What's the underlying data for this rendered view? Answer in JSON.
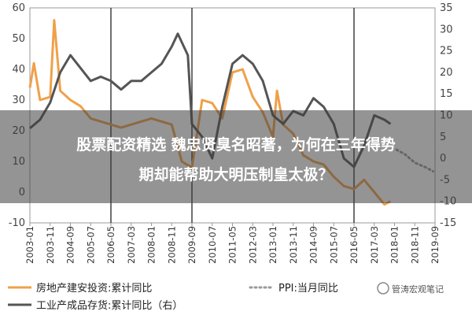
{
  "chart_data": {
    "type": "line",
    "title": "",
    "x_labels": [
      "2003-01",
      "2003-11",
      "2004-09",
      "2005-07",
      "2006-05",
      "2007-03",
      "2008-01",
      "2008-11",
      "2009-09",
      "2010-07",
      "2011-05",
      "2012-03",
      "2013-01",
      "2013-11",
      "2014-09",
      "2015-07",
      "2016-05",
      "2017-03",
      "2018-01",
      "2018-11",
      "2019-09"
    ],
    "left_axis": {
      "min": -10,
      "max": 60,
      "ticks": [
        -10,
        0,
        10,
        20,
        30,
        40,
        50,
        60
      ]
    },
    "right_axis": {
      "min": -15,
      "max": 35,
      "ticks": [
        -15,
        -10,
        -5,
        0,
        5,
        10,
        15,
        20,
        25,
        30,
        35
      ]
    },
    "vertical_lines_at": [
      "2006-05",
      "2009-09",
      "2016-05"
    ],
    "series": [
      {
        "name": "房地产建安投资:累计同比",
        "color": "#f0a04b",
        "axis": "left",
        "points": [
          [
            0,
            34
          ],
          [
            0.2,
            42
          ],
          [
            0.5,
            30
          ],
          [
            1,
            31
          ],
          [
            1.2,
            56
          ],
          [
            1.5,
            33
          ],
          [
            2,
            30
          ],
          [
            2.5,
            28
          ],
          [
            3,
            24
          ],
          [
            3.5,
            23
          ],
          [
            4,
            22
          ],
          [
            4.5,
            21
          ],
          [
            5,
            22
          ],
          [
            5.5,
            23
          ],
          [
            6,
            24
          ],
          [
            6.5,
            23
          ],
          [
            7,
            22
          ],
          [
            7.5,
            10
          ],
          [
            8,
            8
          ],
          [
            8.5,
            30
          ],
          [
            9,
            29
          ],
          [
            9.5,
            24
          ],
          [
            10,
            39
          ],
          [
            10.5,
            40
          ],
          [
            11,
            31
          ],
          [
            11.5,
            26
          ],
          [
            12,
            18
          ],
          [
            12.2,
            33
          ],
          [
            12.5,
            22
          ],
          [
            13,
            19
          ],
          [
            13.5,
            12
          ],
          [
            14,
            10
          ],
          [
            14.5,
            9
          ],
          [
            15,
            5
          ],
          [
            15.5,
            2
          ],
          [
            16,
            1
          ],
          [
            16.5,
            4
          ],
          [
            17,
            0
          ],
          [
            17.5,
            -4
          ],
          [
            17.8,
            -3
          ]
        ]
      },
      {
        "name": "PPI:当月同比",
        "color": "#9a9a9a",
        "axis": "right",
        "style": "dotted",
        "points": [
          [
            18.1,
            2
          ],
          [
            18.5,
            1
          ],
          [
            19,
            -1
          ],
          [
            19.5,
            -2
          ],
          [
            19.9,
            -3
          ]
        ]
      },
      {
        "name": "工业产成品存货:累计同比（右）",
        "color": "#555555",
        "axis": "right",
        "points": [
          [
            0,
            7
          ],
          [
            0.5,
            9
          ],
          [
            1,
            13
          ],
          [
            1.5,
            20
          ],
          [
            2,
            24
          ],
          [
            2.5,
            21
          ],
          [
            3,
            18
          ],
          [
            3.5,
            19
          ],
          [
            4,
            18
          ],
          [
            4.5,
            16
          ],
          [
            5,
            18
          ],
          [
            5.5,
            18
          ],
          [
            6,
            20
          ],
          [
            6.5,
            22
          ],
          [
            7,
            26
          ],
          [
            7.3,
            29
          ],
          [
            7.8,
            24
          ],
          [
            8,
            8
          ],
          [
            8.5,
            5
          ],
          [
            9,
            0
          ],
          [
            9.5,
            12
          ],
          [
            10,
            22
          ],
          [
            10.5,
            24
          ],
          [
            11,
            22
          ],
          [
            11.5,
            18
          ],
          [
            12,
            10
          ],
          [
            12.5,
            8
          ],
          [
            13,
            11
          ],
          [
            13.5,
            10
          ],
          [
            14,
            14
          ],
          [
            14.5,
            12
          ],
          [
            15,
            8
          ],
          [
            15.5,
            0
          ],
          [
            16,
            -2
          ],
          [
            16.5,
            3
          ],
          [
            17,
            10
          ],
          [
            17.5,
            9
          ],
          [
            17.8,
            8
          ]
        ]
      }
    ],
    "legend": [
      {
        "label": "房地产建安投资:累计同比",
        "color": "#f0a04b",
        "style": "solid"
      },
      {
        "label": "PPI:当月同比",
        "color": "#9a9a9a",
        "style": "dotted"
      },
      {
        "label": "工业产成品存货:累计同比（右）",
        "color": "#555555",
        "style": "solid"
      }
    ]
  },
  "overlay": {
    "line1": "股票配资精选 魏忠贤臭名昭著，为何在三年得势",
    "line2": "期却能帮助大明压制皇太极？"
  },
  "watermark": "管涛宏观笔记"
}
